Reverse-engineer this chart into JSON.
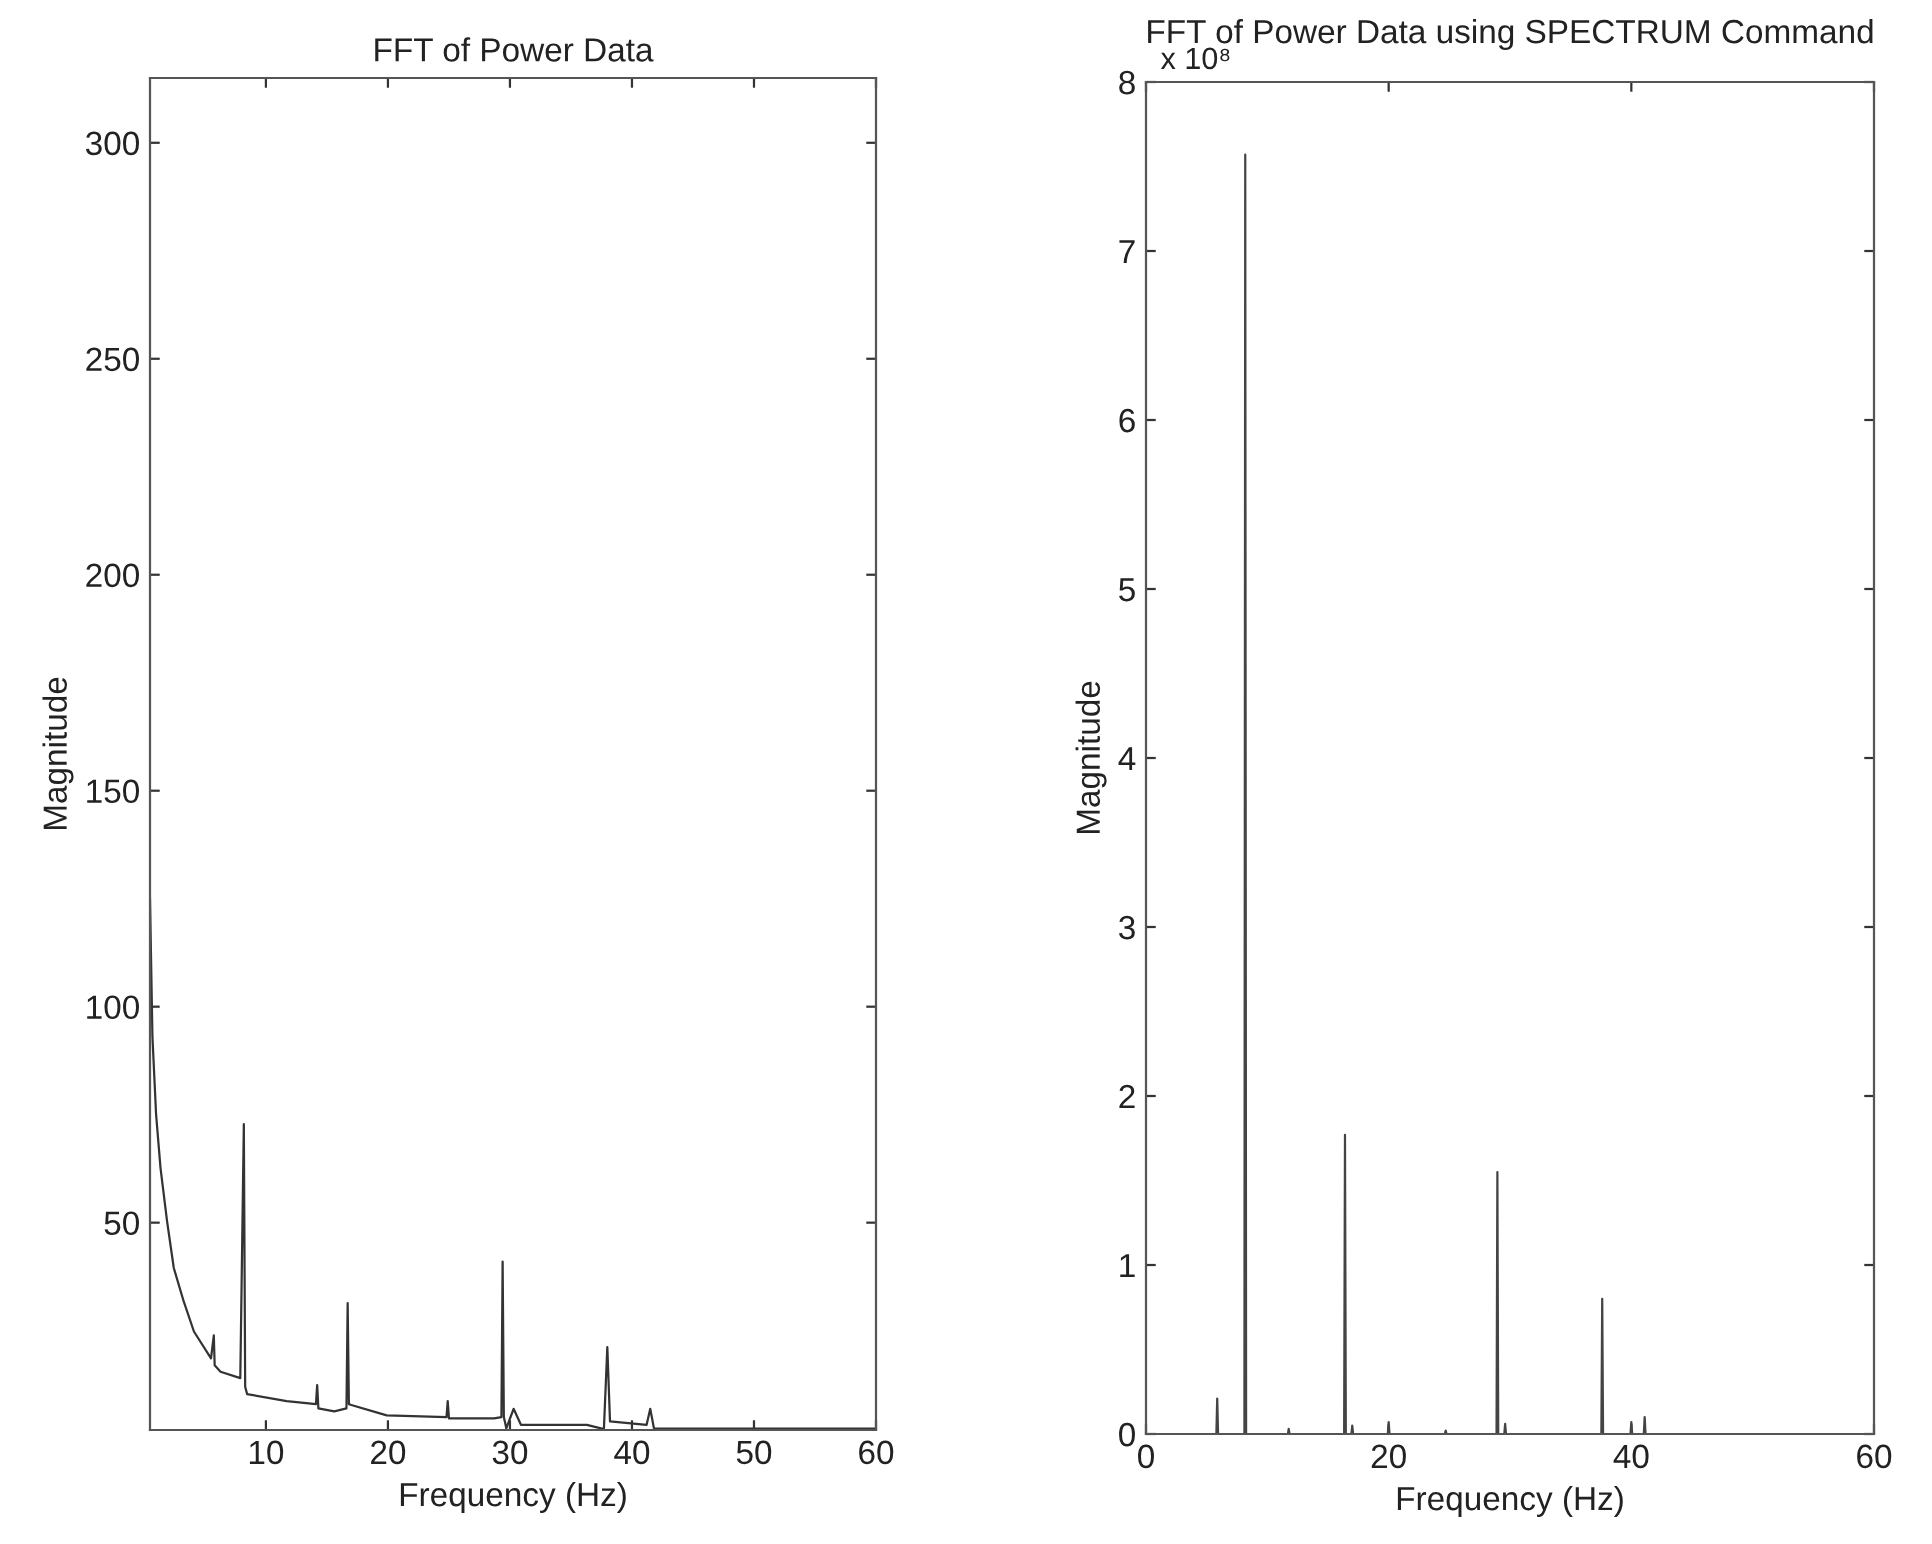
{
  "chart_data": [
    {
      "type": "line",
      "title": "FFT of Power Data",
      "xlabel": "Frequency (Hz)",
      "ylabel": "Magnitude",
      "xlim": [
        0.5,
        60
      ],
      "ylim": [
        2,
        315
      ],
      "xticks": [
        10,
        20,
        30,
        40,
        50,
        60
      ],
      "yticks": [
        50,
        100,
        150,
        200,
        250,
        300
      ],
      "grid": false,
      "legend": false,
      "series": [
        {
          "color": "#333333",
          "x": [
            0.5,
            0.7,
            1.0,
            1.36,
            1.9,
            2.45,
            3.27,
            4.1,
            5.5,
            5.73,
            5.8,
            6.28,
            7.9,
            8.19,
            8.3,
            8.46,
            11.7,
            14.1,
            14.2,
            14.3,
            15.6,
            16.6,
            16.7,
            16.8,
            17.0,
            19.9,
            24.8,
            24.9,
            25.0,
            28.7,
            29.3,
            29.4,
            29.5,
            29.7,
            30.3,
            30.9,
            36.3,
            37.7,
            37.98,
            38.2,
            41.2,
            41.5,
            41.8,
            45,
            50,
            55,
            60
          ],
          "values": [
            125,
            93,
            75,
            62.7,
            50.3,
            39.5,
            31.7,
            24.8,
            18.6,
            23.9,
            17,
            15.5,
            14,
            72.8,
            12,
            10.3,
            8.7,
            8,
            12.4,
            7,
            6.3,
            7,
            31.4,
            8,
            7.8,
            5.4,
            5,
            8.7,
            4.7,
            4.7,
            5,
            41,
            5,
            2.4,
            6.9,
            3.2,
            3.2,
            2.2,
            21.2,
            4,
            3.2,
            6.9,
            2.4,
            2.3,
            2.3,
            2.3,
            2.3
          ]
        }
      ]
    },
    {
      "type": "line",
      "title": "FFT of Power Data using SPECTRUM Command",
      "xlabel": "Frequency (Hz)",
      "ylabel": "Magnitude",
      "annotations": [
        "x 10⁸"
      ],
      "xlim": [
        0,
        60
      ],
      "ylim": [
        0,
        8
      ],
      "xticks": [
        0,
        20,
        40,
        60
      ],
      "yticks": [
        0,
        1,
        2,
        3,
        4,
        5,
        6,
        7,
        8
      ],
      "grid": false,
      "legend": false,
      "series": [
        {
          "color": "#444444",
          "x": [
            0,
            5.8,
            5.87,
            5.94,
            8.11,
            8.18,
            8.25,
            11.7,
            11.76,
            11.83,
            16.33,
            16.4,
            16.47,
            16.93,
            17.0,
            17.07,
            19.93,
            20.0,
            20.07,
            24.63,
            24.7,
            24.77,
            28.89,
            28.96,
            29.03,
            29.53,
            29.6,
            29.67,
            37.53,
            37.6,
            37.67,
            39.93,
            40.0,
            40.07,
            41.03,
            41.1,
            41.17,
            60
          ],
          "values": [
            0,
            0,
            0.21,
            0,
            0,
            7.57,
            0,
            0,
            0.03,
            0,
            0,
            1.77,
            0,
            0,
            0.05,
            0,
            0,
            0.07,
            0,
            0,
            0.02,
            0,
            0,
            1.55,
            0,
            0,
            0.06,
            0,
            0,
            0.8,
            0,
            0,
            0.07,
            0,
            0,
            0.1,
            0,
            0
          ]
        }
      ]
    }
  ]
}
